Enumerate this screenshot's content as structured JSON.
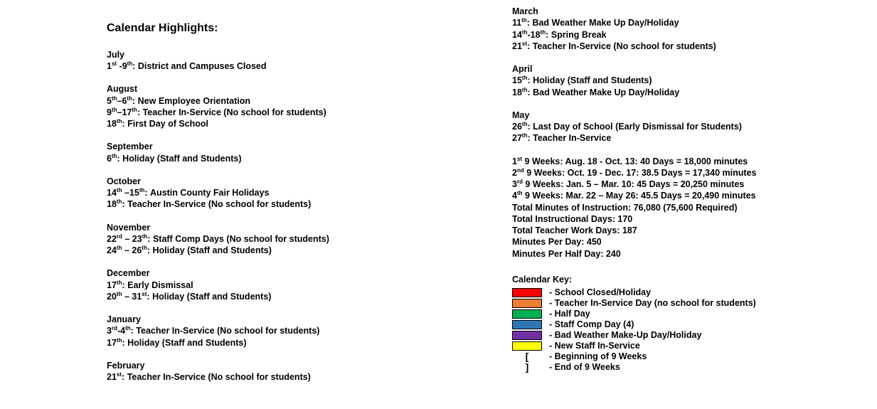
{
  "title": "Calendar Highlights:",
  "left_months": [
    {
      "name": "July",
      "entries": [
        {
          "dateHtml": "1<span class='ord'>st</span> -9<span class='ord'>th</span>:",
          "desc": "District and Campuses Closed"
        }
      ]
    },
    {
      "name": "August",
      "entries": [
        {
          "dateHtml": "5<span class='ord'>th</span>–6<span class='ord'>th</span>:",
          "desc": "New Employee Orientation"
        },
        {
          "dateHtml": "9<span class='ord'>th</span>–17<span class='ord'>th</span>:",
          "desc": "Teacher In-Service (No school for students)"
        },
        {
          "dateHtml": "18<span class='ord'>th</span>:",
          "desc": "First Day of School"
        }
      ]
    },
    {
      "name": "September",
      "entries": [
        {
          "dateHtml": "6<span class='ord'>th</span>:",
          "desc": "Holiday (Staff and Students)"
        }
      ]
    },
    {
      "name": "October",
      "entries": [
        {
          "dateHtml": "14<span class='ord'>th</span> –15<span class='ord'>th</span>:",
          "desc": "Austin County Fair Holidays"
        },
        {
          "dateHtml": "18<span class='ord'>th</span>:",
          "desc": "Teacher In-Service (No school for students)"
        }
      ]
    },
    {
      "name": "November",
      "entries": [
        {
          "dateHtml": "22<span class='ord'>rd</span> – 23<span class='ord'>th</span>:",
          "desc": "Staff Comp Days (No school for students)"
        },
        {
          "dateHtml": "24<span class='ord'>th</span> – 26<span class='ord'>th</span>:",
          "desc": "Holiday (Staff and Students)"
        }
      ]
    },
    {
      "name": "December",
      "entries": [
        {
          "dateHtml": "17<span class='ord'>th</span>:",
          "desc": "Early Dismissal"
        },
        {
          "dateHtml": "20<span class='ord'>th</span> – 31<span class='ord'>st</span>:",
          "desc": "Holiday (Staff and Students)"
        }
      ]
    },
    {
      "name": "January",
      "entries": [
        {
          "dateHtml": "3<span class='ord'>rd</span>-4<span class='ord'>th</span>:",
          "desc": "Teacher In-Service (No school for students)"
        },
        {
          "dateHtml": "17<span class='ord'>th</span>:",
          "desc": "Holiday (Staff and Students)"
        }
      ]
    },
    {
      "name": "February",
      "entries": [
        {
          "dateHtml": "21<span class='ord'>st</span>:",
          "desc": "Teacher In-Service (No school for students)"
        }
      ]
    }
  ],
  "right_months": [
    {
      "name": "March",
      "entries": [
        {
          "dateHtml": "11<span class='ord'>th</span>:",
          "desc": "Bad Weather Make Up Day/Holiday"
        },
        {
          "dateHtml": "14<span class='ord'>th</span>-18<span class='ord'>th</span>:",
          "desc": "Spring Break"
        },
        {
          "dateHtml": "21<span class='ord'>st</span>:",
          "desc": "Teacher In-Service (No school for students)"
        }
      ]
    },
    {
      "name": "April",
      "entries": [
        {
          "dateHtml": "15<span class='ord'>th</span>:",
          "desc": "Holiday (Staff and Students)"
        },
        {
          "dateHtml": "18<span class='ord'>th</span>:",
          "desc": "Bad Weather Make Up Day/Holiday"
        }
      ]
    },
    {
      "name": "May",
      "entries": [
        {
          "dateHtml": "26<span class='ord'>th</span>:",
          "desc": "Last Day of School (Early Dismissal for Students)"
        },
        {
          "dateHtml": "27<span class='ord'>th</span>:",
          "desc": "Teacher In-Service"
        }
      ]
    }
  ],
  "stats": [
    "1<span class='ord'>st</span> 9 Weeks:  Aug. 18 - Oct. 13:  40 Days = 18,000 minutes",
    "2<span class='ord'>nd</span> 9 Weeks:  Oct. 19 - Dec. 17:  38.5 Days = 17,340 minutes",
    "3<span class='ord'>rd</span> 9 Weeks:  Jan. 5 – Mar. 10:  45 Days = 20,250 minutes",
    "4<span class='ord'>th</span> 9 Weeks:  Mar. 22 – May 26:  45.5 Days = 20,490 minutes",
    "Total Minutes of Instruction:  76,080 (75,600 Required)",
    "Total Instructional Days:  170",
    "Total Teacher Work Days:  187",
    "Minutes Per Day:  450",
    "Minutes Per Half Day:  240"
  ],
  "calkey_title": "Calendar Key:",
  "calkey": [
    {
      "type": "swatch",
      "color": "#ff0000",
      "label": "School Closed/Holiday"
    },
    {
      "type": "swatch",
      "color": "#ed7d31",
      "label": "Teacher In-Service Day (no school for students)"
    },
    {
      "type": "swatch",
      "color": "#00b050",
      "label": "Half Day"
    },
    {
      "type": "swatch",
      "color": "#2e75b6",
      "label": "Staff Comp Day (4)"
    },
    {
      "type": "swatch",
      "color": "#7030a0",
      "label": "Bad Weather Make-Up Day/Holiday"
    },
    {
      "type": "swatch",
      "color": "#ffff00",
      "label": "New Staff In-Service"
    },
    {
      "type": "bracket",
      "symbol": "[",
      "label": "Beginning of 9 Weeks"
    },
    {
      "type": "bracket",
      "symbol": "]",
      "label": "End of 9 Weeks"
    }
  ]
}
